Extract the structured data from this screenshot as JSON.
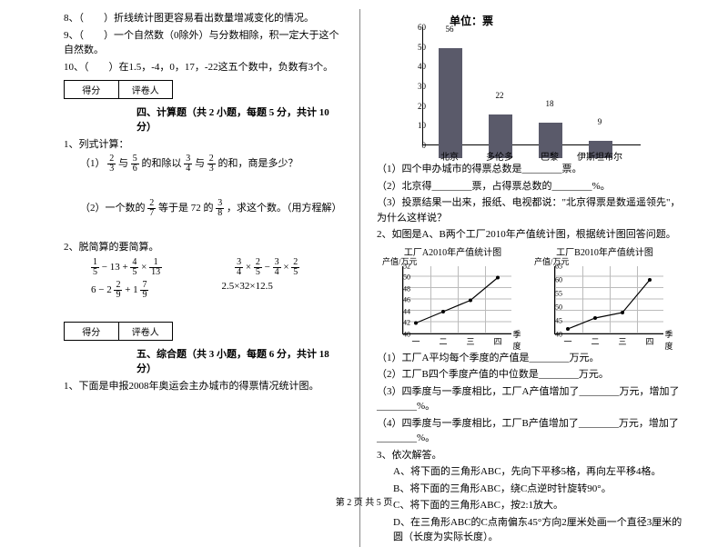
{
  "left": {
    "q8": "8、（　　）折线统计图更容易看出数量增减变化的情况。",
    "q9": "9、（　　）一个自然数（0除外）与分数相除，积一定大于这个自然数。",
    "q10": "10、（　　）在1.5，-4，0，17，-22这五个数中，负数有3个。",
    "score_a": "得分",
    "score_b": "评卷人",
    "sec4_title": "四、计算题（共 2 小题，每题 5 分，共计 10 分）",
    "calc1_label": "1、列式计算：",
    "calc1_1_pre": "（1）",
    "calc1_1_mid1": "与",
    "calc1_1_mid2": "的和除以",
    "calc1_1_mid3": "与",
    "calc1_1_mid4": "的和，商是多少？",
    "calc1_2": "（2）一个数的",
    "calc1_2_mid": "等于是 72 的",
    "calc1_2_end": "，求这个数。（用方程解）",
    "calc2_label": "2、脱简算的要简算。",
    "e1a": "1",
    "e1b": "5",
    "e1c": "4",
    "e1d": "5",
    "e1e": "1",
    "e1f": "13",
    "e2a": "3",
    "e2b": "4",
    "e2c": "2",
    "e2d": "5",
    "e2e": "3",
    "e2f": "4",
    "e2g": "2",
    "e2h": "5",
    "e3a": "2",
    "e3b": "9",
    "e3c": "7",
    "e3d": "9",
    "e4": "2.5×32×12.5",
    "e1op1": "− 13 +",
    "e1op2": "×",
    "e2op1": "×",
    "e2op2": "−",
    "e2op3": "×",
    "e3pre": "6 − 2",
    "e3op": "+ 1",
    "sec5_title": "五、综合题（共 3 小题，每题 6 分，共计 18 分）",
    "comp1": "1、下面是申报2008年奥运会主办城市的得票情况统计图。"
  },
  "right": {
    "barchart": {
      "title": "单位：票",
      "ymax": 60,
      "ystep": 10,
      "cats": [
        "北京",
        "多伦多",
        "巴黎",
        "伊斯坦布尔"
      ],
      "vals": [
        56,
        22,
        18,
        9
      ],
      "color": "#5a5a6a"
    },
    "q1_1": "（1）四个申办城市的得票总数是________票。",
    "q1_2": "（2）北京得________票，占得票总数的________%。",
    "q1_3": "（3）投票结果一出来，报纸、电视都说：\"北京得票是数遥遥领先\"，为什么这样说？",
    "q2": "2、如图是A、B两个工厂2010年产值统计图，根据统计图回答问题。",
    "lcA": {
      "title": "工厂A2010年产值统计图",
      "ylabel": "产值/万元",
      "yticks": [
        40,
        42,
        44,
        46,
        48,
        50,
        52
      ],
      "xticks": [
        "一",
        "二",
        "三",
        "四"
      ],
      "xlabel": "季度",
      "pts": [
        [
          0,
          42
        ],
        [
          1,
          44
        ],
        [
          2,
          46
        ],
        [
          3,
          50
        ]
      ]
    },
    "lcB": {
      "title": "工厂B2010年产值统计图",
      "ylabel": "产值/万元",
      "yticks": [
        40,
        45,
        50,
        55,
        60,
        65
      ],
      "xticks": [
        "一",
        "二",
        "三",
        "四"
      ],
      "xlabel": "季度",
      "pts": [
        [
          0,
          42
        ],
        [
          1,
          46
        ],
        [
          2,
          48
        ],
        [
          3,
          60
        ]
      ]
    },
    "q2_1": "（1）工厂A平均每个季度的产值是________万元。",
    "q2_2": "（2）工厂B四个季度产值的中位数是________万元。",
    "q2_3": "（3）四季度与一季度相比，工厂A产值增加了________万元，增加了________%。",
    "q2_4": "（4）四季度与一季度相比，工厂B产值增加了________万元，增加了________%。",
    "q3": "3、依次解答。",
    "q3a": "A、将下面的三角形ABC，先向下平移5格，再向左平移4格。",
    "q3b": "B、将下面的三角形ABC，绕C点逆时针旋转90°。",
    "q3c": "C、将下面的三角形ABC，按2:1放大。",
    "q3d": "D、在三角形ABC的C点南偏东45°方向2厘米处画一个直径3厘米的圆（长度为实际长度）。"
  },
  "footer": "第 2 页 共 5 页"
}
